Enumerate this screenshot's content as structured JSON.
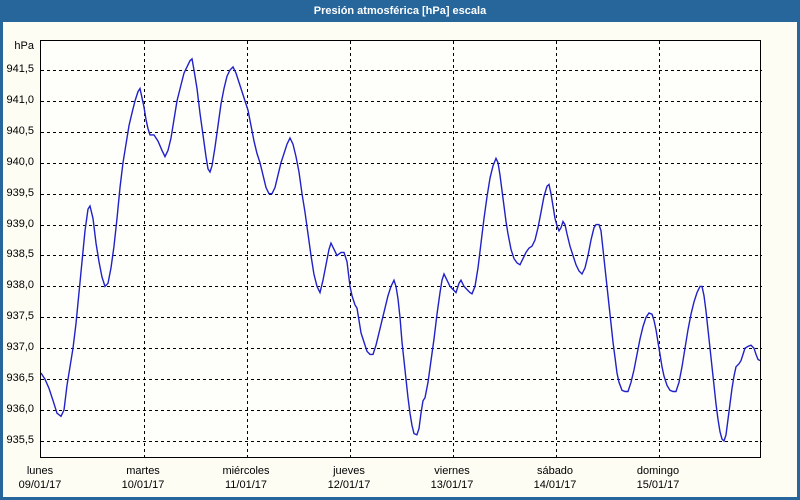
{
  "title": "Presión atmosférica [hPa] escala",
  "chart_data": {
    "type": "line",
    "title": "Presión atmosférica [hPa] escala",
    "ylabel": "hPa",
    "xlabel": "",
    "ylim": [
      935.2,
      942.0
    ],
    "grid": "dashed",
    "legend": "none",
    "line_color": "#2121c8",
    "y_ticks": [
      {
        "value": 941.5,
        "label": "941,5"
      },
      {
        "value": 941.0,
        "label": "941,0"
      },
      {
        "value": 940.5,
        "label": "940,5"
      },
      {
        "value": 940.0,
        "label": "940,0"
      },
      {
        "value": 939.5,
        "label": "939,5"
      },
      {
        "value": 939.0,
        "label": "939,0"
      },
      {
        "value": 938.5,
        "label": "938,5"
      },
      {
        "value": 938.0,
        "label": "938,0"
      },
      {
        "value": 937.5,
        "label": "937,5"
      },
      {
        "value": 937.0,
        "label": "937,0"
      },
      {
        "value": 936.5,
        "label": "936,5"
      },
      {
        "value": 936.0,
        "label": "936,0"
      },
      {
        "value": 935.5,
        "label": "935,5"
      }
    ],
    "x_days": [
      {
        "name": "lunes",
        "date": "09/01/17"
      },
      {
        "name": "martes",
        "date": "10/01/17"
      },
      {
        "name": "miércoles",
        "date": "11/01/17"
      },
      {
        "name": "jueves",
        "date": "12/01/17"
      },
      {
        "name": "viernes",
        "date": "13/01/17"
      },
      {
        "name": "sábado",
        "date": "14/01/17"
      },
      {
        "name": "domingo",
        "date": "15/01/17"
      }
    ],
    "series": [
      {
        "name": "Presión atmosférica",
        "unit": "hPa",
        "x_unit": "days_since_mon_00h",
        "points": [
          [
            0.0,
            936.6
          ],
          [
            0.039,
            936.5
          ],
          [
            0.078,
            936.35
          ],
          [
            0.117,
            936.15
          ],
          [
            0.155,
            935.95
          ],
          [
            0.194,
            935.9
          ],
          [
            0.223,
            936.0
          ],
          [
            0.252,
            936.4
          ],
          [
            0.282,
            936.7
          ],
          [
            0.311,
            937.0
          ],
          [
            0.34,
            937.4
          ],
          [
            0.369,
            937.9
          ],
          [
            0.398,
            938.4
          ],
          [
            0.427,
            938.9
          ],
          [
            0.456,
            939.25
          ],
          [
            0.476,
            939.3
          ],
          [
            0.505,
            939.1
          ],
          [
            0.534,
            938.7
          ],
          [
            0.563,
            938.4
          ],
          [
            0.592,
            938.15
          ],
          [
            0.621,
            938.0
          ],
          [
            0.65,
            938.05
          ],
          [
            0.68,
            938.3
          ],
          [
            0.709,
            938.65
          ],
          [
            0.738,
            939.1
          ],
          [
            0.767,
            939.6
          ],
          [
            0.796,
            940.0
          ],
          [
            0.825,
            940.3
          ],
          [
            0.854,
            940.6
          ],
          [
            0.883,
            940.8
          ],
          [
            0.913,
            941.0
          ],
          [
            0.942,
            941.15
          ],
          [
            0.961,
            941.2
          ],
          [
            0.981,
            941.05
          ],
          [
            1.0,
            940.9
          ],
          [
            1.019,
            940.7
          ],
          [
            1.039,
            940.55
          ],
          [
            1.058,
            940.45
          ],
          [
            1.097,
            940.45
          ],
          [
            1.136,
            940.35
          ],
          [
            1.175,
            940.2
          ],
          [
            1.204,
            940.1
          ],
          [
            1.233,
            940.2
          ],
          [
            1.262,
            940.4
          ],
          [
            1.291,
            940.7
          ],
          [
            1.32,
            941.0
          ],
          [
            1.35,
            941.2
          ],
          [
            1.388,
            941.45
          ],
          [
            1.417,
            941.55
          ],
          [
            1.447,
            941.65
          ],
          [
            1.466,
            941.68
          ],
          [
            1.485,
            941.5
          ],
          [
            1.515,
            941.2
          ],
          [
            1.544,
            940.8
          ],
          [
            1.573,
            940.45
          ],
          [
            1.602,
            940.1
          ],
          [
            1.621,
            939.9
          ],
          [
            1.641,
            939.85
          ],
          [
            1.66,
            939.95
          ],
          [
            1.689,
            940.25
          ],
          [
            1.718,
            940.6
          ],
          [
            1.748,
            940.95
          ],
          [
            1.777,
            941.2
          ],
          [
            1.806,
            941.4
          ],
          [
            1.835,
            941.5
          ],
          [
            1.864,
            941.55
          ],
          [
            1.893,
            941.45
          ],
          [
            1.922,
            941.3
          ],
          [
            1.951,
            941.15
          ],
          [
            1.981,
            941.0
          ],
          [
            2.01,
            940.85
          ],
          [
            2.039,
            940.6
          ],
          [
            2.068,
            940.35
          ],
          [
            2.097,
            940.15
          ],
          [
            2.126,
            940.0
          ],
          [
            2.155,
            939.8
          ],
          [
            2.184,
            939.6
          ],
          [
            2.214,
            939.5
          ],
          [
            2.243,
            939.5
          ],
          [
            2.272,
            939.6
          ],
          [
            2.301,
            939.8
          ],
          [
            2.33,
            940.0
          ],
          [
            2.359,
            940.15
          ],
          [
            2.388,
            940.3
          ],
          [
            2.417,
            940.4
          ],
          [
            2.447,
            940.3
          ],
          [
            2.476,
            940.1
          ],
          [
            2.505,
            939.85
          ],
          [
            2.534,
            939.5
          ],
          [
            2.563,
            939.2
          ],
          [
            2.592,
            938.85
          ],
          [
            2.621,
            938.5
          ],
          [
            2.65,
            938.2
          ],
          [
            2.68,
            938.0
          ],
          [
            2.709,
            937.9
          ],
          [
            2.738,
            938.1
          ],
          [
            2.767,
            938.35
          ],
          [
            2.796,
            938.6
          ],
          [
            2.816,
            938.7
          ],
          [
            2.845,
            938.6
          ],
          [
            2.874,
            938.5
          ],
          [
            2.913,
            938.55
          ],
          [
            2.942,
            938.55
          ],
          [
            2.971,
            938.4
          ],
          [
            3.0,
            938.0
          ],
          [
            3.019,
            937.85
          ],
          [
            3.049,
            937.7
          ],
          [
            3.068,
            937.65
          ],
          [
            3.087,
            937.45
          ],
          [
            3.107,
            937.25
          ],
          [
            3.136,
            937.1
          ],
          [
            3.165,
            936.95
          ],
          [
            3.194,
            936.9
          ],
          [
            3.223,
            936.9
          ],
          [
            3.252,
            937.05
          ],
          [
            3.282,
            937.25
          ],
          [
            3.311,
            937.45
          ],
          [
            3.34,
            937.65
          ],
          [
            3.369,
            937.85
          ],
          [
            3.398,
            938.0
          ],
          [
            3.427,
            938.1
          ],
          [
            3.447,
            938.0
          ],
          [
            3.466,
            937.8
          ],
          [
            3.485,
            937.5
          ],
          [
            3.505,
            937.1
          ],
          [
            3.524,
            936.8
          ],
          [
            3.544,
            936.5
          ],
          [
            3.563,
            936.2
          ],
          [
            3.583,
            935.95
          ],
          [
            3.602,
            935.75
          ],
          [
            3.621,
            935.62
          ],
          [
            3.65,
            935.6
          ],
          [
            3.67,
            935.7
          ],
          [
            3.689,
            935.95
          ],
          [
            3.709,
            936.15
          ],
          [
            3.728,
            936.2
          ],
          [
            3.757,
            936.45
          ],
          [
            3.786,
            936.8
          ],
          [
            3.816,
            937.15
          ],
          [
            3.845,
            937.55
          ],
          [
            3.874,
            937.9
          ],
          [
            3.893,
            938.1
          ],
          [
            3.913,
            938.2
          ],
          [
            3.942,
            938.1
          ],
          [
            3.971,
            938.0
          ],
          [
            4.0,
            937.95
          ],
          [
            4.029,
            937.9
          ],
          [
            4.058,
            938.05
          ],
          [
            4.078,
            938.1
          ],
          [
            4.107,
            938.0
          ],
          [
            4.136,
            937.95
          ],
          [
            4.165,
            937.9
          ],
          [
            4.184,
            937.88
          ],
          [
            4.214,
            938.0
          ],
          [
            4.243,
            938.3
          ],
          [
            4.272,
            938.7
          ],
          [
            4.301,
            939.1
          ],
          [
            4.33,
            939.45
          ],
          [
            4.359,
            939.75
          ],
          [
            4.388,
            939.95
          ],
          [
            4.417,
            940.07
          ],
          [
            4.437,
            940.0
          ],
          [
            4.456,
            939.8
          ],
          [
            4.476,
            939.55
          ],
          [
            4.495,
            939.3
          ],
          [
            4.515,
            939.05
          ],
          [
            4.534,
            938.85
          ],
          [
            4.563,
            938.6
          ],
          [
            4.592,
            938.45
          ],
          [
            4.621,
            938.38
          ],
          [
            4.65,
            938.35
          ],
          [
            4.68,
            938.45
          ],
          [
            4.709,
            938.55
          ],
          [
            4.738,
            938.62
          ],
          [
            4.767,
            938.65
          ],
          [
            4.796,
            938.75
          ],
          [
            4.825,
            938.95
          ],
          [
            4.854,
            939.2
          ],
          [
            4.883,
            939.45
          ],
          [
            4.913,
            939.62
          ],
          [
            4.932,
            939.65
          ],
          [
            4.951,
            939.5
          ],
          [
            4.971,
            939.3
          ],
          [
            4.99,
            939.1
          ],
          [
            5.01,
            938.98
          ],
          [
            5.029,
            938.9
          ],
          [
            5.049,
            938.95
          ],
          [
            5.068,
            939.05
          ],
          [
            5.087,
            939.0
          ],
          [
            5.107,
            938.85
          ],
          [
            5.136,
            938.65
          ],
          [
            5.165,
            938.5
          ],
          [
            5.194,
            938.35
          ],
          [
            5.223,
            938.25
          ],
          [
            5.252,
            938.2
          ],
          [
            5.282,
            938.3
          ],
          [
            5.311,
            938.5
          ],
          [
            5.34,
            938.75
          ],
          [
            5.369,
            938.95
          ],
          [
            5.388,
            939.0
          ],
          [
            5.417,
            939.0
          ],
          [
            5.437,
            938.9
          ],
          [
            5.456,
            938.6
          ],
          [
            5.476,
            938.3
          ],
          [
            5.495,
            938.0
          ],
          [
            5.515,
            937.7
          ],
          [
            5.534,
            937.4
          ],
          [
            5.553,
            937.1
          ],
          [
            5.573,
            936.85
          ],
          [
            5.592,
            936.6
          ],
          [
            5.612,
            936.45
          ],
          [
            5.641,
            936.32
          ],
          [
            5.67,
            936.3
          ],
          [
            5.699,
            936.3
          ],
          [
            5.728,
            936.45
          ],
          [
            5.757,
            936.65
          ],
          [
            5.786,
            936.9
          ],
          [
            5.816,
            937.15
          ],
          [
            5.845,
            937.35
          ],
          [
            5.874,
            937.5
          ],
          [
            5.903,
            937.57
          ],
          [
            5.932,
            937.55
          ],
          [
            5.951,
            937.45
          ],
          [
            5.971,
            937.3
          ],
          [
            5.99,
            937.1
          ],
          [
            6.01,
            936.9
          ],
          [
            6.029,
            936.7
          ],
          [
            6.049,
            936.55
          ],
          [
            6.078,
            936.4
          ],
          [
            6.107,
            936.32
          ],
          [
            6.136,
            936.3
          ],
          [
            6.165,
            936.3
          ],
          [
            6.194,
            936.45
          ],
          [
            6.223,
            936.7
          ],
          [
            6.252,
            937.0
          ],
          [
            6.282,
            937.3
          ],
          [
            6.311,
            937.55
          ],
          [
            6.34,
            937.75
          ],
          [
            6.369,
            937.9
          ],
          [
            6.398,
            938.0
          ],
          [
            6.417,
            938.0
          ],
          [
            6.437,
            937.85
          ],
          [
            6.456,
            937.6
          ],
          [
            6.476,
            937.3
          ],
          [
            6.495,
            937.0
          ],
          [
            6.515,
            936.7
          ],
          [
            6.534,
            936.4
          ],
          [
            6.553,
            936.1
          ],
          [
            6.573,
            935.85
          ],
          [
            6.592,
            935.65
          ],
          [
            6.612,
            935.53
          ],
          [
            6.631,
            935.5
          ],
          [
            6.65,
            935.6
          ],
          [
            6.67,
            935.85
          ],
          [
            6.689,
            936.1
          ],
          [
            6.709,
            936.35
          ],
          [
            6.728,
            936.55
          ],
          [
            6.748,
            936.7
          ],
          [
            6.777,
            936.75
          ],
          [
            6.796,
            936.8
          ],
          [
            6.816,
            936.9
          ],
          [
            6.835,
            937.0
          ],
          [
            6.864,
            937.03
          ],
          [
            6.893,
            937.05
          ],
          [
            6.922,
            937.0
          ],
          [
            6.942,
            936.9
          ],
          [
            6.961,
            936.82
          ],
          [
            6.981,
            936.8
          ]
        ]
      }
    ]
  }
}
